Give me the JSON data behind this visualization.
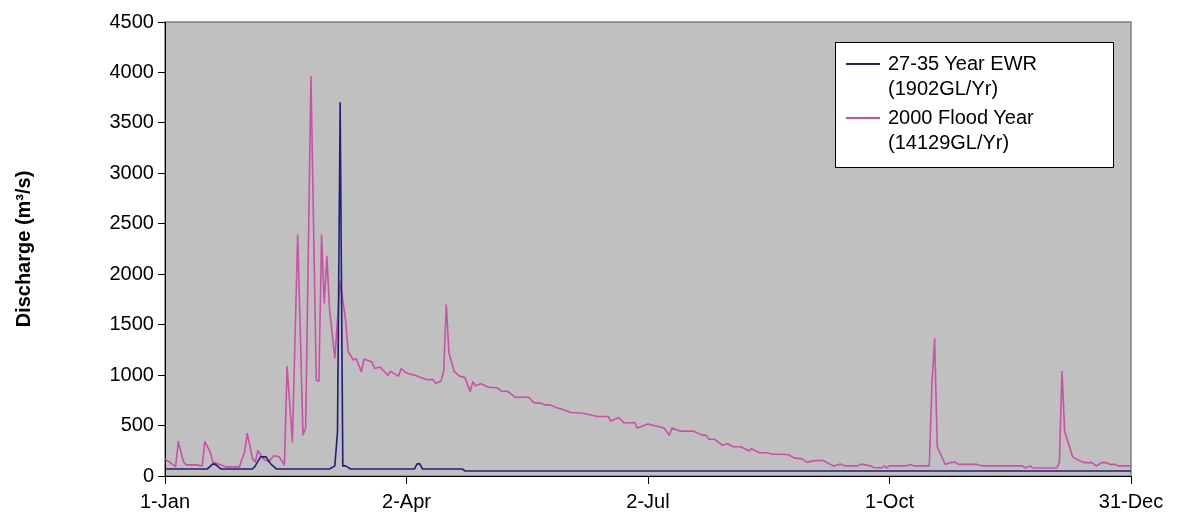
{
  "chart_data": {
    "type": "line",
    "ylabel": "Discharge (m³/s)",
    "xlim": [
      "--01-01",
      "--12-31"
    ],
    "xticks": [
      {
        "value": "--01-01",
        "label": "1-Jan"
      },
      {
        "value": "--04-02",
        "label": "2-Apr"
      },
      {
        "value": "--07-02",
        "label": "2-Jul"
      },
      {
        "value": "--10-01",
        "label": "1-Oct"
      },
      {
        "value": "--12-31",
        "label": "31-Dec"
      }
    ],
    "ylim": [
      0,
      4500
    ],
    "yticks": [
      0,
      500,
      1000,
      1500,
      2000,
      2500,
      3000,
      3500,
      4000,
      4500
    ],
    "grid": false,
    "legend": "top right",
    "marker": "none",
    "line_style": "solid",
    "series": [
      {
        "name": "27-35 Year EWR (1902GL/Yr)",
        "color": "#1f1f7a",
        "x": [
          "--01-01",
          "--01-17",
          "--01-19",
          "--01-20",
          "--01-22",
          "--02-03",
          "--02-04",
          "--02-06",
          "--02-08",
          "--02-10",
          "--02-12",
          "--03-04",
          "--03-06",
          "--03-07",
          "--03-08",
          "--03-09",
          "--03-10",
          "--03-12",
          "--04-05",
          "--04-06",
          "--04-07",
          "--04-08",
          "--04-23",
          "--04-24",
          "--12-31"
        ],
        "values": [
          70,
          70,
          120,
          115,
          70,
          70,
          100,
          190,
          190,
          115,
          70,
          70,
          100,
          440,
          3700,
          100,
          100,
          70,
          70,
          120,
          120,
          70,
          70,
          50,
          50
        ]
      },
      {
        "name": "2000 Flood Year (14129GL/Yr)",
        "color": "#cc4fa8",
        "x": [
          "--01-01",
          "--01-05",
          "--01-06",
          "--01-08",
          "--01-09",
          "--01-13",
          "--01-15",
          "--01-16",
          "--01-18",
          "--01-19",
          "--01-21",
          "--01-24",
          "--01-29",
          "--01-31",
          "--02-01",
          "--02-03",
          "--02-04",
          "--02-05",
          "--02-07",
          "--02-09",
          "--02-11",
          "--02-13",
          "--02-15",
          "--02-16",
          "--02-18",
          "--02-20",
          "--02-22",
          "--02-23",
          "--02-25",
          "--02-27",
          "--02-28",
          "--03-01",
          "--03-02",
          "--03-03",
          "--03-04",
          "--03-06",
          "--03-08",
          "--03-10",
          "--03-11",
          "--03-13",
          "--03-14",
          "--03-16",
          "--03-17",
          "--03-20",
          "--03-21",
          "--03-23",
          "--03-26",
          "--03-27",
          "--03-28",
          "--03-30",
          "--03-31",
          "--04-02",
          "--04-05",
          "--04-08",
          "--04-10",
          "--04-12",
          "--04-13",
          "--04-15",
          "--04-16",
          "--04-17",
          "--04-18",
          "--04-20",
          "--04-22",
          "--04-24",
          "--04-26",
          "--04-27",
          "--04-28",
          "--04-30",
          "--05-03",
          "--05-06",
          "--05-08",
          "--05-10",
          "--05-13",
          "--05-18",
          "--05-20",
          "--05-23",
          "--05-24",
          "--05-26",
          "--05-29",
          "--06-01",
          "--06-03",
          "--06-07",
          "--06-13",
          "--06-17",
          "--06-18",
          "--06-21",
          "--06-23",
          "--06-27",
          "--06-28",
          "--07-02",
          "--07-05",
          "--07-08",
          "--07-10",
          "--07-11",
          "--07-14",
          "--07-19",
          "--07-22",
          "--07-24",
          "--07-25",
          "--07-27",
          "--07-30",
          "--08-01",
          "--08-03",
          "--08-06",
          "--08-09",
          "--08-10",
          "--08-13",
          "--08-16",
          "--08-18",
          "--08-21",
          "--08-24",
          "--08-26",
          "--08-29",
          "--08-31",
          "--09-02",
          "--09-06",
          "--09-08",
          "--09-10",
          "--09-12",
          "--09-13",
          "--09-14",
          "--09-19",
          "--09-20",
          "--09-21",
          "--09-24",
          "--09-25",
          "--09-28",
          "--09-29",
          "--09-30",
          "--10-01",
          "--10-07",
          "--10-09",
          "--10-10",
          "--10-16",
          "--10-17",
          "--10-18",
          "--10-19",
          "--10-22",
          "--10-24",
          "--10-26",
          "--10-27",
          "--11-03",
          "--11-05",
          "--11-20",
          "--11-21",
          "--11-23",
          "--11-24",
          "--12-03",
          "--12-04",
          "--12-05",
          "--12-06",
          "--12-09",
          "--12-11",
          "--12-13",
          "--12-15",
          "--12-16",
          "--12-18",
          "--12-20",
          "--12-22",
          "--12-23",
          "--12-25",
          "--12-26",
          "--12-31"
        ],
        "values": [
          170,
          92,
          340,
          142,
          110,
          110,
          100,
          340,
          240,
          142,
          120,
          90,
          90,
          240,
          420,
          170,
          140,
          250,
          170,
          140,
          200,
          190,
          110,
          1085,
          340,
          2390,
          410,
          475,
          3960,
          950,
          940,
          2390,
          1715,
          2175,
          1650,
          1170,
          1930,
          1550,
          1235,
          1150,
          1165,
          1035,
          1160,
          1130,
          1065,
          1080,
          1000,
          1040,
          1020,
          990,
          1065,
          1020,
          1000,
          970,
          955,
          955,
          920,
          940,
          1035,
          1695,
          1220,
          1035,
          990,
          975,
          836,
          935,
          895,
          915,
          880,
          875,
          840,
          840,
          780,
          780,
          727,
          720,
          705,
          705,
          675,
          650,
          630,
          625,
          590,
          590,
          545,
          580,
          525,
          530,
          475,
          515,
          495,
          475,
          405,
          475,
          445,
          445,
          410,
          400,
          365,
          365,
          305,
          320,
          290,
          290,
          250,
          270,
          230,
          230,
          215,
          215,
          210,
          180,
          170,
          135,
          150,
          155,
          125,
          100,
          115,
          115,
          100,
          100,
          115,
          115,
          100,
          85,
          80,
          100,
          80,
          100,
          100,
          115,
          100,
          100,
          920,
          1360,
          290,
          115,
          135,
          135,
          115,
          115,
          100,
          100,
          80,
          100,
          80,
          80,
          130,
          1035,
          440,
          190,
          160,
          135,
          130,
          135,
          100,
          135,
          130,
          115,
          115,
          100,
          100
        ]
      }
    ]
  }
}
